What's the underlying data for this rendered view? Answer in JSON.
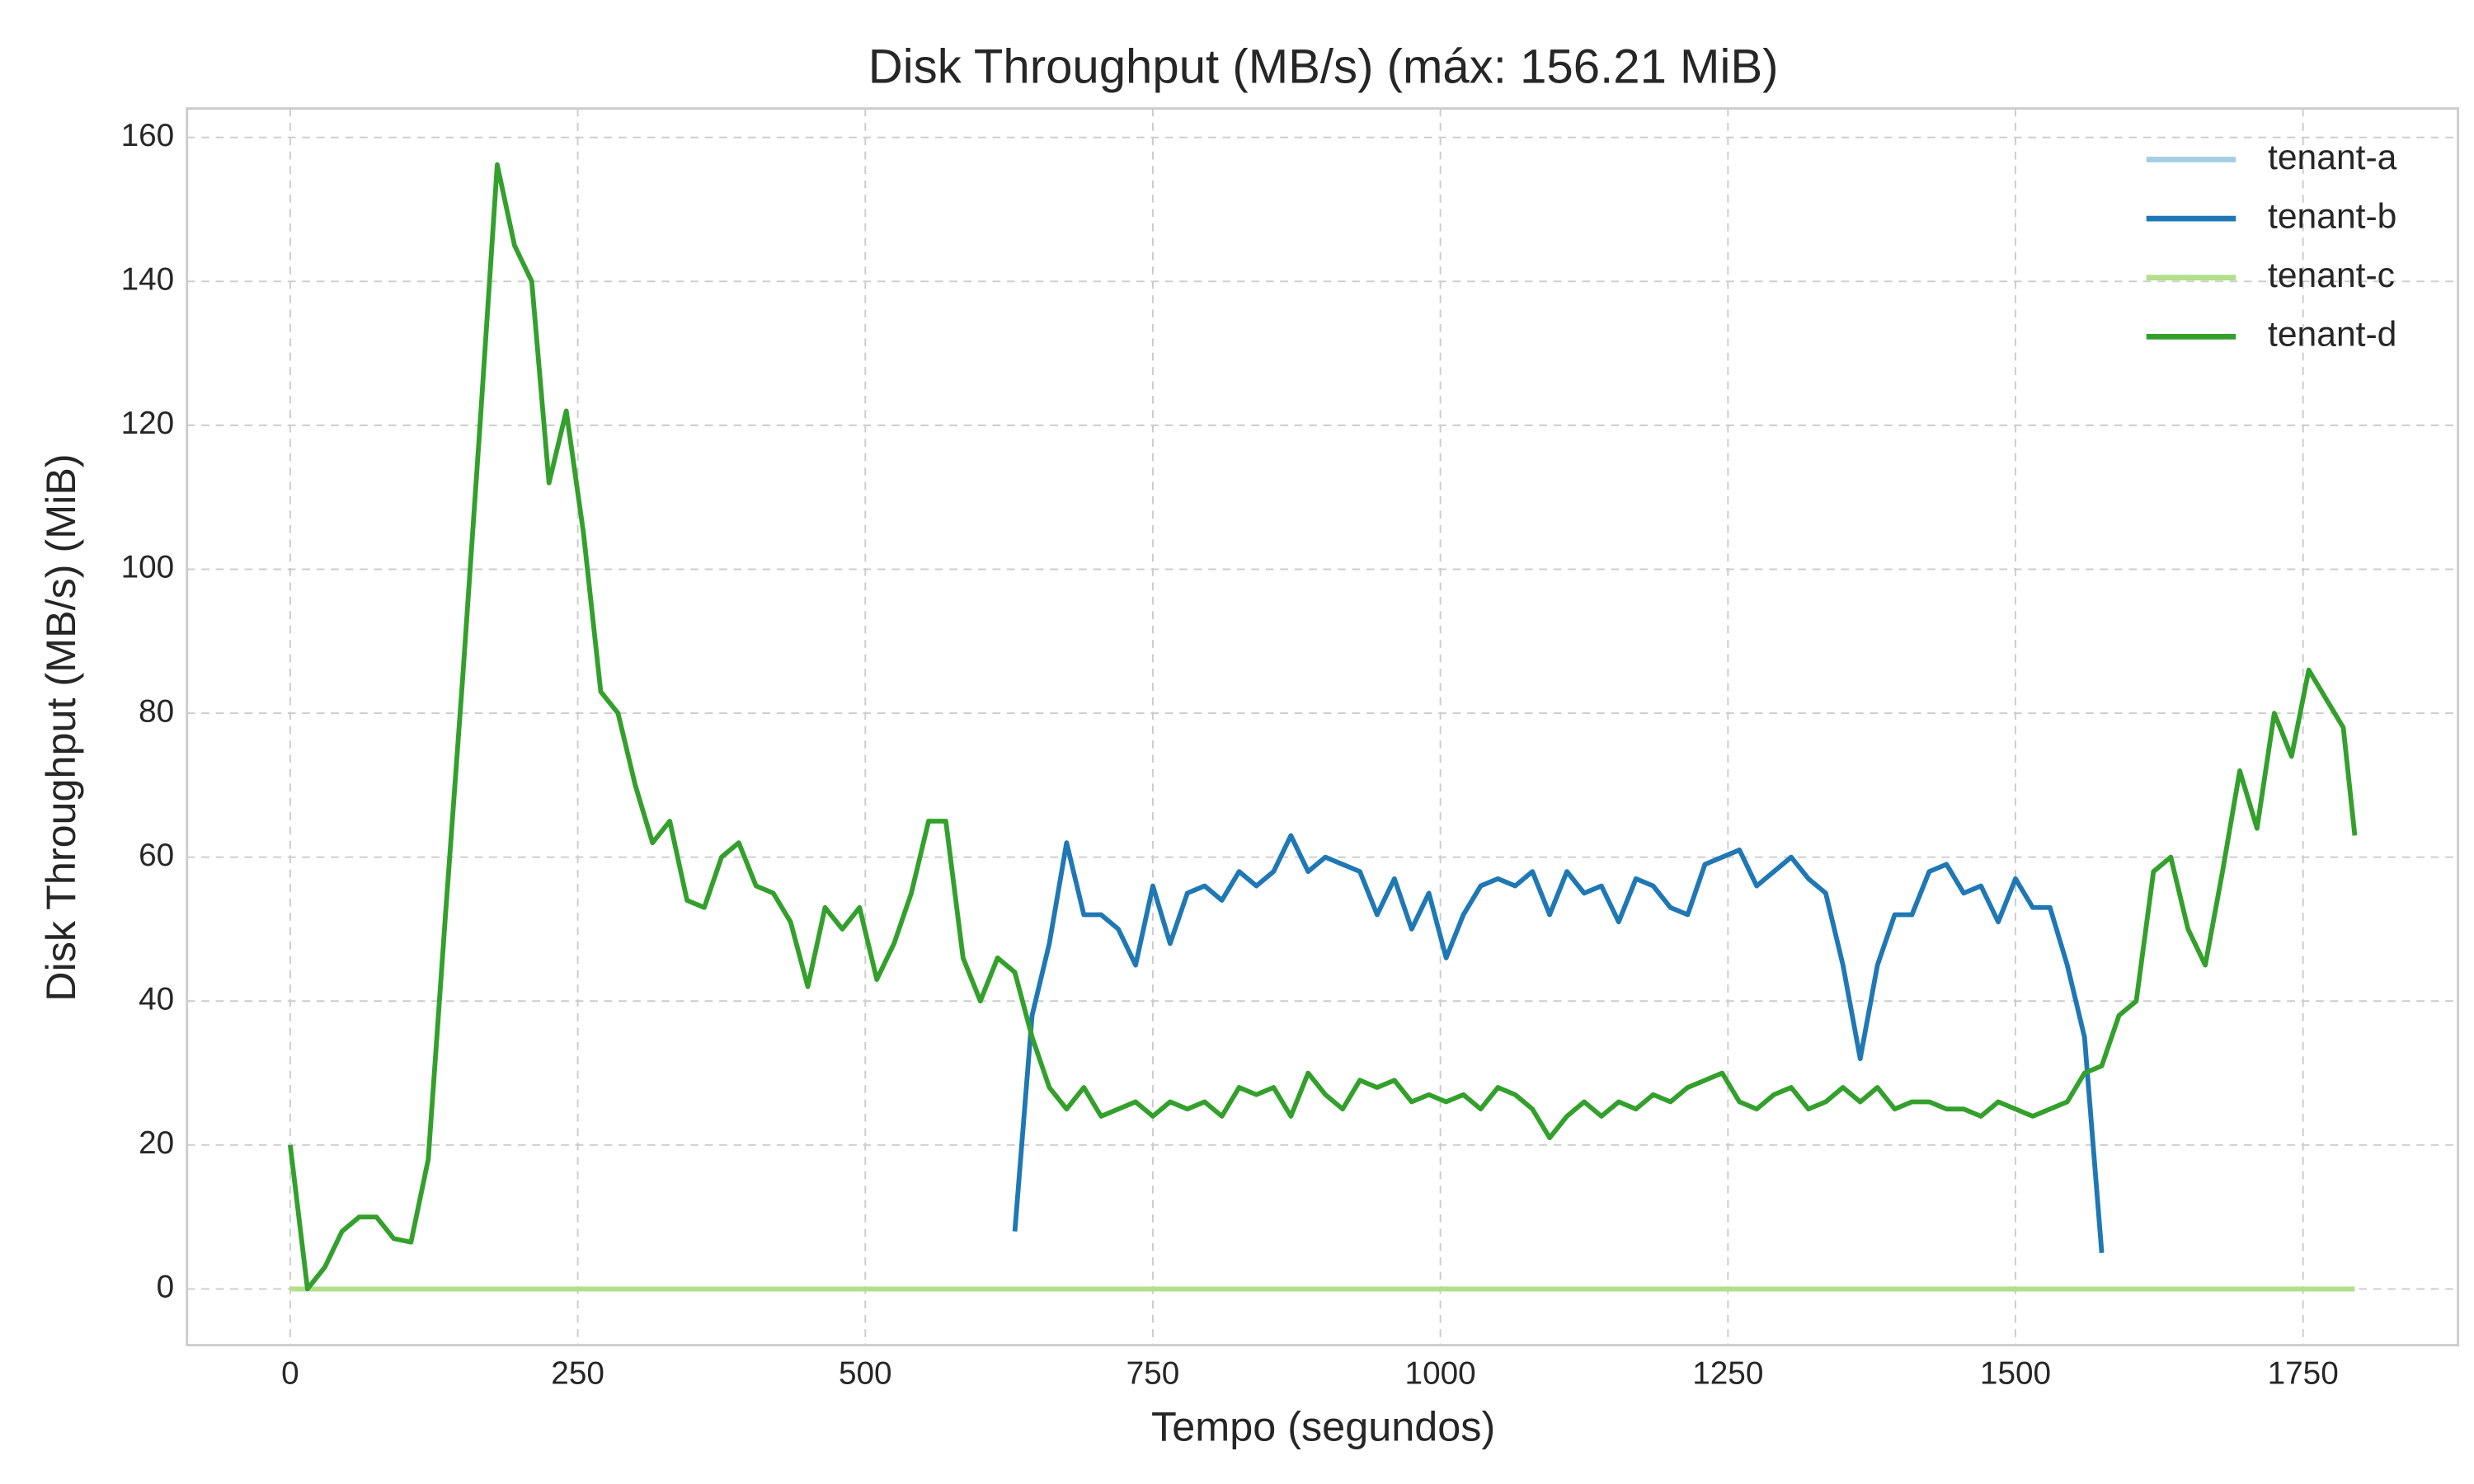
{
  "chart_data": {
    "type": "line",
    "title": "Disk Throughput (MB/s) (máx: 156.21 MiB)",
    "x_label": "Tempo (segundos)",
    "y_label": "Disk Throughput (MB/s) (MiB)",
    "x": [
      0,
      15,
      30,
      45,
      60,
      75,
      90,
      105,
      120,
      135,
      150,
      165,
      180,
      195,
      210,
      225,
      240,
      255,
      270,
      285,
      300,
      315,
      330,
      345,
      360,
      375,
      390,
      405,
      420,
      435,
      450,
      465,
      480,
      495,
      510,
      525,
      540,
      555,
      570,
      585,
      600,
      615,
      630,
      645,
      660,
      675,
      690,
      705,
      720,
      735,
      750,
      765,
      780,
      795,
      810,
      825,
      840,
      855,
      870,
      885,
      900,
      915,
      930,
      945,
      960,
      975,
      990,
      1005,
      1020,
      1035,
      1050,
      1065,
      1080,
      1095,
      1110,
      1125,
      1140,
      1155,
      1170,
      1185,
      1200,
      1215,
      1230,
      1245,
      1260,
      1275,
      1290,
      1305,
      1320,
      1335,
      1350,
      1365,
      1380,
      1395,
      1410,
      1425,
      1440,
      1455,
      1470,
      1485,
      1500,
      1515,
      1530,
      1545,
      1560,
      1575,
      1590,
      1605,
      1620,
      1635,
      1650,
      1665,
      1680,
      1695,
      1710,
      1725,
      1740,
      1755,
      1770,
      1785,
      1795
    ],
    "series": [
      {
        "name": "tenant-a",
        "color": "#a6cee3",
        "values": [
          0,
          0,
          0,
          0,
          0,
          0,
          0,
          0,
          0,
          0,
          0,
          0,
          0,
          0,
          0,
          0,
          0,
          0,
          0,
          0,
          0,
          0,
          0,
          0,
          0,
          0,
          0,
          0,
          0,
          0,
          0,
          0,
          0,
          0,
          0,
          0,
          0,
          0,
          0,
          0,
          0,
          0,
          0,
          0,
          0,
          0,
          0,
          0,
          0,
          0,
          0,
          0,
          0,
          0,
          0,
          0,
          0,
          0,
          0,
          0,
          0,
          0,
          0,
          0,
          0,
          0,
          0,
          0,
          0,
          0,
          0,
          0,
          0,
          0,
          0,
          0,
          0,
          0,
          0,
          0,
          0,
          0,
          0,
          0,
          0,
          0,
          0,
          0,
          0,
          0,
          0,
          0,
          0,
          0,
          0,
          0,
          0,
          0,
          0,
          0,
          0,
          0,
          0,
          0,
          0,
          0,
          0,
          0,
          0,
          0,
          0,
          0,
          0,
          0,
          0,
          0,
          0,
          0,
          0,
          0,
          0
        ]
      },
      {
        "name": "tenant-b",
        "color": "#1f78b4",
        "values": [
          null,
          null,
          null,
          null,
          null,
          null,
          null,
          null,
          null,
          null,
          null,
          null,
          null,
          null,
          null,
          null,
          null,
          null,
          null,
          null,
          null,
          null,
          null,
          null,
          null,
          null,
          null,
          null,
          null,
          null,
          null,
          null,
          null,
          null,
          null,
          null,
          null,
          null,
          null,
          null,
          null,
          null,
          8,
          38,
          48,
          62,
          52,
          52,
          50,
          45,
          56,
          48,
          55,
          56,
          54,
          58,
          56,
          58,
          63,
          58,
          60,
          59,
          58,
          52,
          57,
          50,
          55,
          46,
          52,
          56,
          57,
          56,
          58,
          52,
          58,
          55,
          56,
          51,
          57,
          56,
          53,
          52,
          59,
          60,
          61,
          56,
          58,
          60,
          57,
          55,
          45,
          32,
          45,
          52,
          52,
          58,
          59,
          55,
          56,
          51,
          57,
          53,
          53,
          45,
          35,
          5,
          null,
          null,
          null,
          null,
          null,
          null,
          null,
          null,
          null,
          null,
          null,
          null,
          null,
          null,
          null
        ]
      },
      {
        "name": "tenant-c",
        "color": "#b2df8a",
        "values": [
          0,
          0,
          0,
          0,
          0,
          0,
          0,
          0,
          0,
          0,
          0,
          0,
          0,
          0,
          0,
          0,
          0,
          0,
          0,
          0,
          0,
          0,
          0,
          0,
          0,
          0,
          0,
          0,
          0,
          0,
          0,
          0,
          0,
          0,
          0,
          0,
          0,
          0,
          0,
          0,
          0,
          0,
          0,
          0,
          0,
          0,
          0,
          0,
          0,
          0,
          0,
          0,
          0,
          0,
          0,
          0,
          0,
          0,
          0,
          0,
          0,
          0,
          0,
          0,
          0,
          0,
          0,
          0,
          0,
          0,
          0,
          0,
          0,
          0,
          0,
          0,
          0,
          0,
          0,
          0,
          0,
          0,
          0,
          0,
          0,
          0,
          0,
          0,
          0,
          0,
          0,
          0,
          0,
          0,
          0,
          0,
          0,
          0,
          0,
          0,
          0,
          0,
          0,
          0,
          0,
          0,
          0,
          0,
          0,
          0,
          0,
          0,
          0,
          0,
          0,
          0,
          0,
          0,
          0,
          0,
          0
        ]
      },
      {
        "name": "tenant-d",
        "color": "#33a02c",
        "values": [
          20,
          0,
          3,
          8,
          10,
          10,
          7,
          6.5,
          18,
          52,
          85,
          120,
          156.21,
          145,
          140,
          112,
          122,
          105,
          83,
          80,
          70,
          62,
          65,
          54,
          53,
          60,
          62,
          56,
          55,
          51,
          42,
          53,
          50,
          53,
          43,
          48,
          55,
          65,
          65,
          46,
          40,
          46,
          44,
          35,
          28,
          25,
          28,
          24,
          25,
          26,
          24,
          26,
          25,
          26,
          24,
          28,
          27,
          28,
          24,
          30,
          27,
          25,
          29,
          28,
          29,
          26,
          27,
          26,
          27,
          25,
          28,
          27,
          25,
          21,
          24,
          26,
          24,
          26,
          25,
          27,
          26,
          28,
          29,
          30,
          26,
          25,
          27,
          28,
          25,
          26,
          28,
          26,
          28,
          25,
          26,
          26,
          25,
          25,
          24,
          26,
          25,
          24,
          25,
          26,
          30,
          31,
          38,
          40,
          58,
          60,
          50,
          45,
          58,
          72,
          64,
          80,
          74,
          86,
          82,
          78,
          63
        ]
      }
    ],
    "xlim": [
      -89.75,
      1884.75
    ],
    "ylim": [
      -7.81,
      164.02
    ],
    "xticks": [
      0,
      250,
      500,
      750,
      1000,
      1250,
      1500,
      1750
    ],
    "yticks": [
      0,
      20,
      40,
      60,
      80,
      100,
      120,
      140,
      160
    ],
    "grid": true,
    "legend": "upper right"
  }
}
